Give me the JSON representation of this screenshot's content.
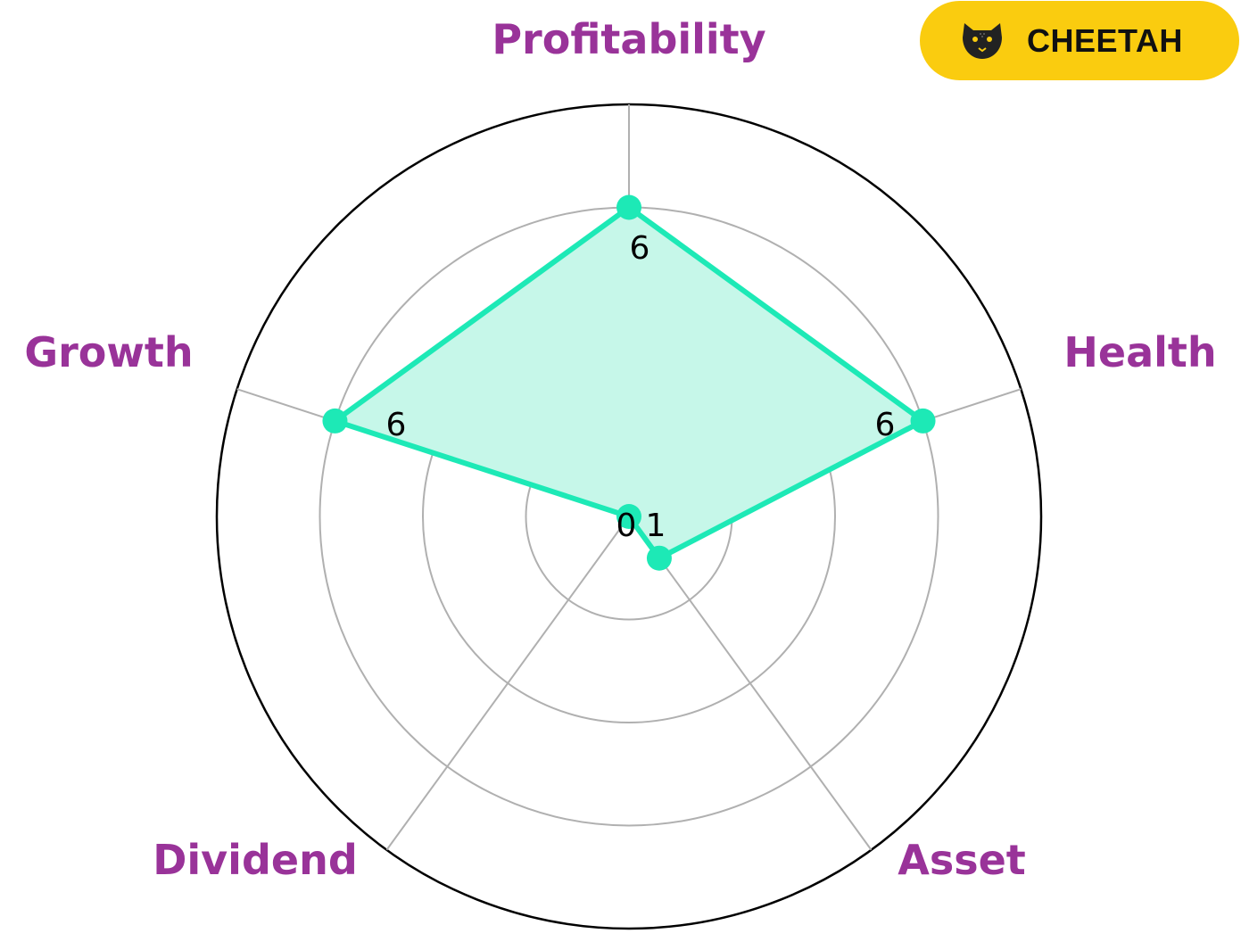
{
  "badge": {
    "text": "CHEETAH",
    "icon": "cheetah-icon",
    "background": "#FACC0F"
  },
  "chart_data": {
    "type": "radar",
    "title": "",
    "categories": [
      "Profitability",
      "Health",
      "Asset",
      "Dividend",
      "Growth"
    ],
    "values": [
      6,
      6,
      1,
      0,
      6
    ],
    "value_labels": [
      "6",
      "6",
      "1",
      "0",
      "6"
    ],
    "rmax": 8,
    "rings": [
      2,
      4,
      6,
      8
    ],
    "grid": true,
    "colors": {
      "series": "#1DE9B6",
      "fill": "#C6F7E9",
      "labels": "#993399",
      "grid": "#b0b0b0",
      "outer": "#000000"
    }
  }
}
